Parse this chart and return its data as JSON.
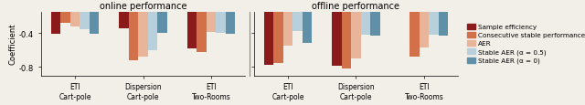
{
  "online": {
    "groups": [
      "ETI\nCart-pole",
      "Dispersion\nCart-pole",
      "ETI\nTwo-Rooms"
    ],
    "series": {
      "Sample efficiency": [
        -0.41,
        -0.35,
        -0.58
      ],
      "Consecutive stable performance": [
        -0.28,
        -0.72,
        -0.62
      ],
      "AER": [
        -0.32,
        -0.68,
        -0.39
      ],
      "Stable AER (a=0.5)": [
        -0.36,
        -0.6,
        -0.4
      ],
      "Stable AER (a=0)": [
        -0.41,
        -0.4,
        -0.41
      ]
    }
  },
  "offline": {
    "groups": [
      "ETI\nCart-pole",
      "Dispersion\nCart-pole",
      "ETI\nTwo-Rooms"
    ],
    "series": {
      "Sample efficiency": [
        -0.78,
        -0.79,
        -0.15
      ],
      "Consecutive stable performance": [
        -0.75,
        -0.82,
        -0.68
      ],
      "AER": [
        -0.55,
        -0.7,
        -0.57
      ],
      "Stable AER (a=0.5)": [
        -0.38,
        -0.42,
        -0.42
      ],
      "Stable AER (a=0)": [
        -0.52,
        -0.43,
        -0.43
      ]
    }
  },
  "colors": {
    "Sample efficiency": "#8B1A1A",
    "Consecutive stable performance": "#D2704A",
    "AER": "#E8B49A",
    "Stable AER (a=0.5)": "#B8D0DC",
    "Stable AER (a=0)": "#6090A8"
  },
  "legend_labels": [
    "Sample efficiency",
    "Consecutive stable performance",
    "AER",
    "Stable AER (α = 0.5)",
    "Stable AER (α = 0)"
  ],
  "ylabel": "Coefficient",
  "ylim": [
    -0.9,
    -0.15
  ],
  "yticks": [
    -0.8,
    -0.4
  ],
  "title_online": "online performance",
  "title_offline": "offline performance",
  "bg_color": "#F2EFE9"
}
